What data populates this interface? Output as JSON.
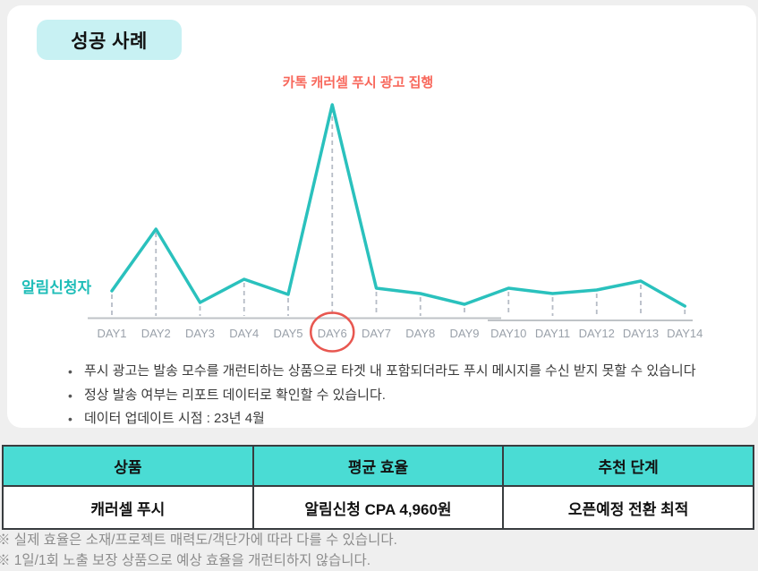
{
  "header": {
    "badge_label": "성공 사례"
  },
  "chart_data": {
    "type": "line",
    "series_label": "알림신청자",
    "annotation": {
      "text": "카톡 캐러셀 푸시 광고 집행",
      "target": "DAY6"
    },
    "categories": [
      "DAY1",
      "DAY2",
      "DAY3",
      "DAY4",
      "DAY5",
      "DAY6",
      "DAY7",
      "DAY8",
      "DAY9",
      "DAY10",
      "DAY11",
      "DAY12",
      "DAY13",
      "DAY14"
    ],
    "values": [
      31,
      100,
      18,
      44,
      27,
      239,
      34,
      28,
      16,
      34,
      28,
      32,
      42,
      14
    ],
    "value_unit": "relative height (chart displays no numeric y-axis)",
    "ylim": [
      0,
      260
    ],
    "grid": false,
    "legend": "none",
    "highlighted_category": "DAY6",
    "line_color": "#2ac1bd",
    "annotation_color": "#f8685c",
    "highlight_circle_color": "#e85750",
    "axis_color": "#bfc3c7",
    "drop_line_color": "#b6bcc6",
    "tick_label_color": "#9aa1aa"
  },
  "notes": {
    "bullets": [
      "푸시 광고는 발송 모수를 개런티하는 상품으로 타겟 내 포함되더라도 푸시 메시지를 수신 받지 못할 수 있습니다",
      "정상 발송 여부는 리포트 데이터로 확인할 수 있습니다.",
      "데이터 업데이트 시점 : 23년 4월"
    ]
  },
  "table": {
    "headers": [
      "상품",
      "평균 효율",
      "추천 단계"
    ],
    "rows": [
      [
        "캐러셀 푸시",
        "알림신청 CPA 4,960원",
        "오픈예정 전환 최적"
      ]
    ],
    "header_bg": "#4adcd4",
    "border_color": "#383c3f"
  },
  "footnotes": [
    "※ 실제 효율은 소재/프로젝트 매력도/객단가에 따라 다를 수 있습니다.",
    "※ 1일/1회 노출 보장 상품으로 예상 효율을 개런티하지 않습니다."
  ],
  "colors": {
    "page_bg": "#efefef",
    "card_bg": "#ffffff",
    "badge_bg": "#c8f1f3",
    "badge_text": "#121212",
    "note_text": "#3a3a3a",
    "footnote_text": "#8c8c8c"
  }
}
